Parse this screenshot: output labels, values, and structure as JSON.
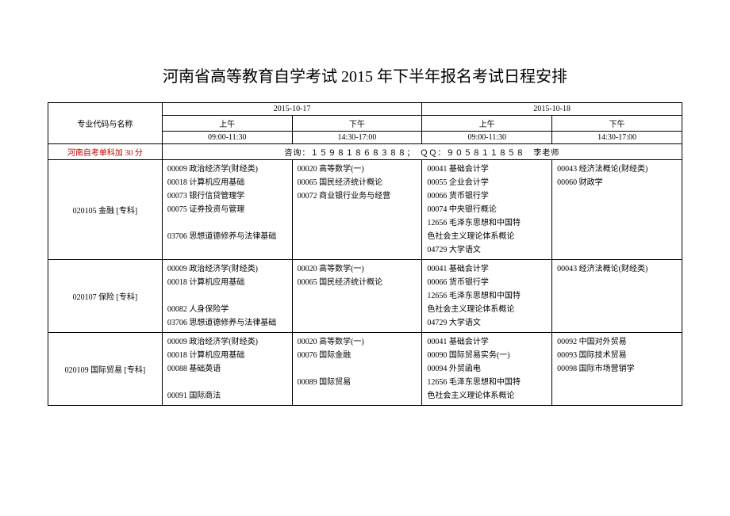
{
  "title": "河南省高等教育自学考试 2015 年下半年报名考试日程安排",
  "header": {
    "majorCol": "专业代码与名称",
    "date1": "2015-10-17",
    "date2": "2015-10-18",
    "morning": "上午",
    "afternoon": "下午",
    "morningTime": "09:00-11:30",
    "afternoonTime": "14:30-17:00"
  },
  "notice": {
    "left": "河南自考单科加 30 分",
    "right": "咨询：１５９８１８６８３８８；　ＱＱ：９０５８１１８５８　李老师"
  },
  "rows": [
    {
      "major": "020105 金融 [专科]",
      "c1": [
        "00009 政治经济学(财经类)",
        "00018 计算机应用基础",
        "00073 银行信贷管理学",
        "00075 证券投资与管理",
        "",
        "03706 思想道德修养与法律基础"
      ],
      "c2": [
        "00020 高等数学(一)",
        "00065 国民经济统计概论",
        "00072 商业银行业务与经营"
      ],
      "c3": [
        "00041 基础会计学",
        "00055 企业会计学",
        "00066 货币银行学",
        "00074 中央银行概论",
        "12656 毛泽东思想和中国特",
        "色社会主义理论体系概论",
        "04729 大学语文"
      ],
      "c4": [
        "00043 经济法概论(财经类)",
        "00060 财政学"
      ]
    },
    {
      "major": "020107 保险 [专科]",
      "c1": [
        "00009 政治经济学(财经类)",
        "00018 计算机应用基础",
        "",
        "00082 人身保险学",
        "03706 思想道德修养与法律基础"
      ],
      "c2": [
        "00020 高等数学(一)",
        "00065 国民经济统计概论"
      ],
      "c3": [
        "00041 基础会计学",
        "00066 货币银行学",
        "12656 毛泽东思想和中国特",
        "色社会主义理论体系概论",
        "04729 大学语文"
      ],
      "c4": [
        "00043 经济法概论(财经类)"
      ]
    },
    {
      "major": "020109 国际贸易 [专科]",
      "c1": [
        "00009 政治经济学(财经类)",
        "00018 计算机应用基础",
        "00088 基础英语",
        "",
        "00091 国际商法"
      ],
      "c2": [
        "00020 高等数学(一)",
        "00076 国际金融",
        "",
        "00089 国际贸易"
      ],
      "c3": [
        "00041 基础会计学",
        "00090 国际贸易实务(一)",
        "00094 外贸函电",
        "12656 毛泽东思想和中国特",
        "色社会主义理论体系概论"
      ],
      "c4": [
        "00092 中国对外贸易",
        "00093 国际技术贸易",
        "00098 国际市场营销学"
      ]
    }
  ]
}
